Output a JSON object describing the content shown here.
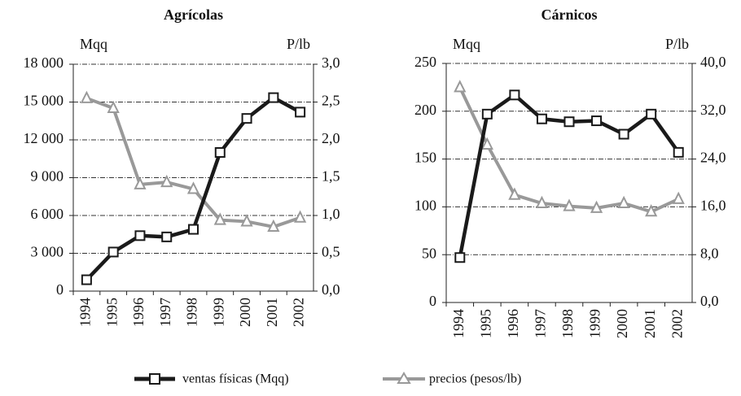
{
  "chart_data": [
    {
      "type": "line",
      "title": "Agrícolas",
      "y_label": "Mqq",
      "y2_label": "P/lb",
      "categories": [
        "1994",
        "1995",
        "1996",
        "1997",
        "1998",
        "1999",
        "2000",
        "2001",
        "2002"
      ],
      "series": [
        {
          "name": "ventas físicas (Mqq)",
          "color": "#1a1a1a",
          "values": [
            900,
            3100,
            4400,
            4300,
            4900,
            11000,
            13700,
            15350,
            14200
          ]
        },
        {
          "name": "precios (pesos/lb)",
          "color": "#999999",
          "axis": "y2",
          "values": [
            2.55,
            2.42,
            1.41,
            1.44,
            1.35,
            0.94,
            0.92,
            0.85,
            0.97
          ]
        }
      ],
      "ylim": [
        0,
        18000
      ],
      "yticks": [
        0,
        {
          "value": 3000,
          "label": "3 000"
        },
        {
          "value": 6000,
          "label": "6 000"
        },
        {
          "value": 9000,
          "label": "9 000"
        },
        {
          "value": 12000,
          "label": "12 000"
        },
        {
          "value": 15000,
          "label": "15 000"
        },
        {
          "value": 18000,
          "label": "18 000"
        }
      ],
      "y2lim": [
        0,
        3
      ],
      "y2ticks": [
        {
          "value": 0,
          "label": "0,0"
        },
        {
          "value": 0.5,
          "label": "0,5"
        },
        {
          "value": 1,
          "label": "1,0"
        },
        {
          "value": 1.5,
          "label": "1,5"
        },
        {
          "value": 2,
          "label": "2,0"
        },
        {
          "value": 2.5,
          "label": "2,5"
        },
        {
          "value": 3,
          "label": "3,0"
        }
      ],
      "grid": true
    },
    {
      "type": "line",
      "title": "Cárnicos",
      "y_label": "Mqq",
      "y2_label": "P/lb",
      "categories": [
        "1994",
        "1995",
        "1996",
        "1997",
        "1998",
        "1999",
        "2000",
        "2001",
        "2002"
      ],
      "series": [
        {
          "color": "#1a1a1a",
          "values": [
            47,
            197,
            217,
            192,
            189,
            190,
            176,
            197,
            157
          ]
        },
        {
          "color": "#999999",
          "axis": "y2",
          "values": [
            36.0,
            26.4,
            18.0,
            16.6,
            16.1,
            15.8,
            16.6,
            15.2,
            17.3
          ]
        }
      ],
      "ylim": [
        0,
        250
      ],
      "yticks": [
        0,
        50,
        100,
        150,
        200,
        250
      ],
      "y2lim": [
        0,
        40
      ],
      "y2ticks": [
        {
          "value": 0,
          "label": "0,0"
        },
        {
          "value": 8,
          "label": "8,0"
        },
        {
          "value": 16,
          "label": "16,0"
        },
        {
          "value": 24,
          "label": "24,0"
        },
        {
          "value": 32,
          "label": "32,0"
        },
        {
          "value": 40,
          "label": "40,0"
        }
      ],
      "grid": true
    }
  ]
}
